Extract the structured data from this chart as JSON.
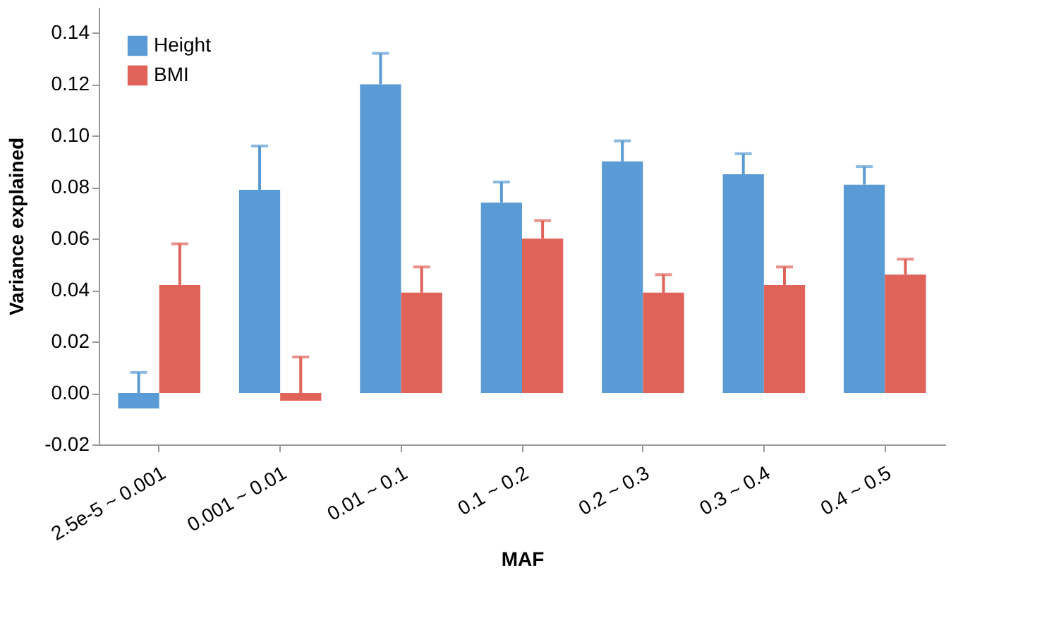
{
  "chart_data": {
    "type": "bar",
    "xlabel": "MAF",
    "ylabel": "Variance explained",
    "categories": [
      "2.5e-5 ~ 0.001",
      "0.001 ~ 0.01",
      "0.01 ~ 0.1",
      "0.1 ~ 0.2",
      "0.2 ~ 0.3",
      "0.3 ~ 0.4",
      "0.4 ~ 0.5"
    ],
    "series": [
      {
        "name": "Height",
        "color": "#5b9bd5",
        "values": [
          -0.006,
          0.079,
          0.12,
          0.074,
          0.09,
          0.085,
          0.081
        ],
        "errors": [
          [
            -0.006,
            0.008
          ],
          [
            0.079,
            0.096
          ],
          [
            0.12,
            0.132
          ],
          [
            0.074,
            0.082
          ],
          [
            0.09,
            0.098
          ],
          [
            0.085,
            0.093
          ],
          [
            0.081,
            0.088
          ]
        ]
      },
      {
        "name": "BMI",
        "color": "#e0635a",
        "values": [
          0.042,
          -0.003,
          0.039,
          0.06,
          0.039,
          0.042,
          0.046
        ],
        "errors": [
          [
            0.042,
            0.058
          ],
          [
            -0.003,
            0.014
          ],
          [
            0.039,
            0.049
          ],
          [
            0.06,
            0.067
          ],
          [
            0.039,
            0.046
          ],
          [
            0.042,
            0.049
          ],
          [
            0.046,
            0.052
          ]
        ]
      }
    ],
    "ylim": [
      -0.02,
      0.15
    ],
    "yticks": [
      {
        "value": -0.02,
        "label": "-0.02"
      },
      {
        "value": 0,
        "label": "0.00"
      },
      {
        "value": 0.02,
        "label": "0.02"
      },
      {
        "value": 0.04,
        "label": "0.04"
      },
      {
        "value": 0.06,
        "label": "0.06"
      },
      {
        "value": 0.08,
        "label": "0.08"
      },
      {
        "value": 0.1,
        "label": "0.10"
      },
      {
        "value": 0.12,
        "label": "0.12"
      },
      {
        "value": 0.14,
        "label": "0.14"
      }
    ],
    "grid": false,
    "legend": "top left"
  }
}
